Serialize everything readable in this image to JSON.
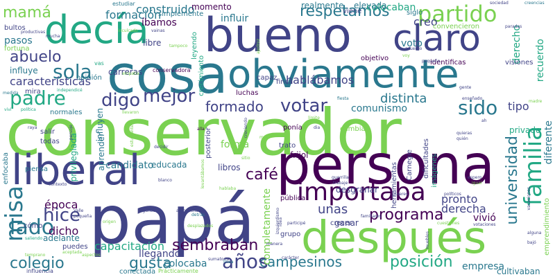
{
  "words": [
    {
      "text": "conservador",
      "color": "#7ad151"
    },
    {
      "text": "papá",
      "color": "#414487"
    },
    {
      "text": "persona",
      "color": "#440154"
    },
    {
      "text": "bueno",
      "color": "#414487"
    },
    {
      "text": "después",
      "color": "#7ad151"
    },
    {
      "text": "cosa",
      "color": "#2a788e"
    },
    {
      "text": "obviamente",
      "color": "#2a788e"
    },
    {
      "text": "liberal",
      "color": "#414487"
    },
    {
      "text": "decía",
      "color": "#22a884"
    },
    {
      "text": "claro",
      "color": "#414487"
    },
    {
      "text": "importaba",
      "color": "#440154"
    },
    {
      "text": "partido",
      "color": "#7ad151"
    },
    {
      "text": "sembraban",
      "color": "#440154"
    },
    {
      "text": "familia",
      "color": "#22a884"
    },
    {
      "text": "universidad",
      "color": "#2a788e"
    },
    {
      "text": "campesinos",
      "color": "#2a788e"
    },
    {
      "text": "posición",
      "color": "#22a884"
    },
    {
      "text": "colegio",
      "color": "#2a788e"
    },
    {
      "text": "lado",
      "color": "#2a788e"
    },
    {
      "text": "gusta",
      "color": "#2a788e"
    },
    {
      "text": "años",
      "color": "#414487"
    },
    {
      "text": "misa",
      "color": "#2a788e"
    },
    {
      "text": "hice",
      "color": "#414487"
    },
    {
      "text": "votar",
      "color": "#414487"
    },
    {
      "text": "mejor",
      "color": "#414487"
    },
    {
      "text": "padre",
      "color": "#22a884"
    },
    {
      "text": "sola",
      "color": "#2a788e"
    },
    {
      "text": "respetamos",
      "color": "#2a788e"
    },
    {
      "text": "programa",
      "color": "#440154"
    },
    {
      "text": "formado",
      "color": "#414487"
    },
    {
      "text": "digo",
      "color": "#414487"
    },
    {
      "text": "sido",
      "color": "#2a788e"
    },
    {
      "text": "café",
      "color": "#440154"
    },
    {
      "text": "abuelo",
      "color": "#414487"
    },
    {
      "text": "mamá",
      "color": "#7ad151"
    },
    {
      "text": "hablábamos",
      "color": "#414487"
    },
    {
      "text": "características",
      "color": "#414487"
    },
    {
      "text": "construido",
      "color": "#2a788e"
    },
    {
      "text": "formación",
      "color": "#2a788e"
    },
    {
      "text": "colocaban",
      "color": "#22a884"
    },
    {
      "text": "distinta",
      "color": "#2a788e"
    },
    {
      "text": "comunismo",
      "color": "#2a788e"
    },
    {
      "text": "capacitación",
      "color": "#22a884"
    },
    {
      "text": "época",
      "color": "#440154"
    },
    {
      "text": "dicho",
      "color": "#440154"
    },
    {
      "text": "candidato",
      "color": "#2a788e"
    },
    {
      "text": "pronto",
      "color": "#414487"
    },
    {
      "text": "derecha",
      "color": "#414487"
    },
    {
      "text": "unas",
      "color": "#414487"
    },
    {
      "text": "colocaba",
      "color": "#2a788e"
    },
    {
      "text": "llegando",
      "color": "#414487"
    },
    {
      "text": "empresa",
      "color": "#2a788e"
    },
    {
      "text": "cultivaban",
      "color": "#2a788e"
    },
    {
      "text": "tipo",
      "color": "#414487"
    },
    {
      "text": "vivió",
      "color": "#440154"
    },
    {
      "text": "forma",
      "color": "#7ad151"
    },
    {
      "text": "creo",
      "color": "#414487"
    },
    {
      "text": "voto",
      "color": "#2a788e"
    },
    {
      "text": "recuerdo",
      "color": "#22a884"
    },
    {
      "text": "derecho",
      "color": "#22a884"
    },
    {
      "text": "diferente",
      "color": "#2a788e"
    },
    {
      "text": "privado",
      "color": "#22a884"
    },
    {
      "text": "influye",
      "color": "#2a788e"
    },
    {
      "text": "influir",
      "color": "#2a788e"
    },
    {
      "text": "íbamos",
      "color": "#440154"
    },
    {
      "text": "momento",
      "color": "#440154"
    },
    {
      "text": "finca",
      "color": "#414487"
    },
    {
      "text": "realmente",
      "color": "#2a788e"
    },
    {
      "text": "elevada",
      "color": "#2a788e"
    },
    {
      "text": "pasos",
      "color": "#2a788e"
    },
    {
      "text": "bultos",
      "color": "#414487"
    },
    {
      "text": "fortuna",
      "color": "#7ad151"
    },
    {
      "text": "estudiar",
      "color": "#2a788e"
    },
    {
      "text": "simplemente",
      "color": "#2a788e"
    },
    {
      "text": "viene",
      "color": "#414487"
    },
    {
      "text": "siglo",
      "color": "#2a788e"
    },
    {
      "text": "convencieron",
      "color": "#7ad151"
    },
    {
      "text": "libre",
      "color": "#414487"
    },
    {
      "text": "carreras",
      "color": "#414487"
    },
    {
      "text": "conservadora",
      "color": "#440154"
    },
    {
      "text": "opinión",
      "color": "#2a788e"
    },
    {
      "text": "leyendo",
      "color": "#22a884"
    },
    {
      "text": "crecimiento",
      "color": "#22a884"
    },
    {
      "text": "capaz",
      "color": "#414487"
    },
    {
      "text": "objetivo",
      "color": "#440154"
    },
    {
      "text": "identificas",
      "color": "#440154"
    },
    {
      "text": "visiones",
      "color": "#414487"
    },
    {
      "text": "luchas",
      "color": "#440154"
    },
    {
      "text": "normales",
      "color": "#2a788e"
    },
    {
      "text": "mira",
      "color": "#414487"
    },
    {
      "text": "influyen",
      "color": "#2a788e"
    },
    {
      "text": "aprender",
      "color": "#2a788e"
    },
    {
      "text": "privilegiada",
      "color": "#22a884"
    },
    {
      "text": "salir",
      "color": "#414487"
    },
    {
      "text": "todas",
      "color": "#414487"
    },
    {
      "text": "educada",
      "color": "#2a788e"
    },
    {
      "text": "libros",
      "color": "#414487"
    },
    {
      "text": "ponía",
      "color": "#440154"
    },
    {
      "text": "cambiar",
      "color": "#7ad151"
    },
    {
      "text": "trato",
      "color": "#414487"
    },
    {
      "text": "frijol",
      "color": "#440154"
    },
    {
      "text": "Carnegie",
      "color": "#414487"
    },
    {
      "text": "dificultades",
      "color": "#414487"
    },
    {
      "text": "imágenes",
      "color": "#22a884"
    },
    {
      "text": "herramientas",
      "color": "#414487"
    },
    {
      "text": "completamente",
      "color": "#7ad151"
    },
    {
      "text": "desgranar",
      "color": "#414487"
    },
    {
      "text": "pública",
      "color": "#440154"
    },
    {
      "text": "ganar",
      "color": "#414487"
    },
    {
      "text": "crecer",
      "color": "#414487"
    },
    {
      "text": "grupo",
      "color": "#414487"
    },
    {
      "text": "adelante",
      "color": "#2a788e"
    },
    {
      "text": "puedes",
      "color": "#414487"
    },
    {
      "text": "piensa",
      "color": "#2a788e"
    },
    {
      "text": "enfocaba",
      "color": "#2a788e"
    },
    {
      "text": "cómo",
      "color": "#414487"
    },
    {
      "text": "emprendimiento",
      "color": "#7ad151"
    },
    {
      "text": "conectada",
      "color": "#2a788e"
    },
    {
      "text": "influencia",
      "color": "#414487"
    },
    {
      "text": "Prácticamente",
      "color": "#7ad151"
    },
    {
      "text": "posterior",
      "color": "#414487"
    },
    {
      "text": "manera",
      "color": "#414487"
    },
    {
      "text": "sociedad",
      "color": "#414487"
    },
    {
      "text": "creencias",
      "color": "#2a788e"
    },
    {
      "text": "vainas",
      "color": "#414487"
    },
    {
      "text": "inculcado",
      "color": "#7ad151"
    },
    {
      "text": "productivas",
      "color": "#414487"
    },
    {
      "text": "mucha",
      "color": "#414487"
    },
    {
      "text": "tampoco",
      "color": "#7ad151"
    },
    {
      "text": "ajedrez",
      "color": "#7ad151"
    },
    {
      "text": "acuerdo",
      "color": "#414487"
    },
    {
      "text": "voy",
      "color": "#7ad151"
    },
    {
      "text": "vas",
      "color": "#22a884"
    },
    {
      "text": "pequeño",
      "color": "#414487"
    },
    {
      "text": "empatía",
      "color": "#7ad151"
    },
    {
      "text": "independicé",
      "color": "#22a884"
    },
    {
      "text": "medida",
      "color": "#2a788e"
    },
    {
      "text": "política",
      "color": "#22a884"
    },
    {
      "text": "vivi",
      "color": "#22a884"
    },
    {
      "text": "llevaron",
      "color": "#7ad151"
    },
    {
      "text": "fiesta",
      "color": "#2a788e"
    },
    {
      "text": "ah",
      "color": "#414487"
    },
    {
      "text": "alla",
      "color": "#440154"
    },
    {
      "text": "persoje",
      "color": "#414487"
    },
    {
      "text": "estudiante",
      "color": "#7ad151"
    },
    {
      "text": "creciendo",
      "color": "#414487"
    },
    {
      "text": "raya",
      "color": "#414487"
    },
    {
      "text": "decidir",
      "color": "#414487"
    },
    {
      "text": "sitio",
      "color": "#7ad151"
    },
    {
      "text": "quieras",
      "color": "#414487"
    },
    {
      "text": "quién",
      "color": "#414487"
    },
    {
      "text": "blanco",
      "color": "#414487"
    },
    {
      "text": "contexto",
      "color": "#414487"
    },
    {
      "text": "hablaba",
      "color": "#7ad151"
    },
    {
      "text": "levantábamos",
      "color": "#7ad151"
    },
    {
      "text": "trabaje",
      "color": "#414487"
    },
    {
      "text": "guerrilla",
      "color": "#414487"
    },
    {
      "text": "espero",
      "color": "#414487"
    },
    {
      "text": "igual",
      "color": "#7ad151"
    },
    {
      "text": "Valle",
      "color": "#414487"
    },
    {
      "text": "pequeña",
      "color": "#414487"
    },
    {
      "text": "algunos",
      "color": "#414487"
    },
    {
      "text": "aprovecharse",
      "color": "#414487"
    },
    {
      "text": "origen",
      "color": "#7ad151"
    },
    {
      "text": "detrás",
      "color": "#2a788e"
    },
    {
      "text": "izquierdismo",
      "color": "#414487"
    },
    {
      "text": "participé",
      "color": "#414487"
    },
    {
      "text": "familiares",
      "color": "#414487"
    },
    {
      "text": "quieres",
      "color": "#414487"
    },
    {
      "text": "vacaciones",
      "color": "#414487"
    },
    {
      "text": "políticos",
      "color": "#414487"
    },
    {
      "text": "votaciones",
      "color": "#414487"
    },
    {
      "text": "cuestiones",
      "color": "#7ad151"
    },
    {
      "text": "alguna",
      "color": "#414487"
    },
    {
      "text": "bajó",
      "color": "#414487"
    },
    {
      "text": "desplazados",
      "color": "#7ad151"
    },
    {
      "text": "sumatoria",
      "color": "#414487"
    },
    {
      "text": "carácter",
      "color": "#414487"
    },
    {
      "text": "temprano",
      "color": "#7ad151"
    },
    {
      "text": "aspectos",
      "color": "#7ad151"
    },
    {
      "text": "saliendo",
      "color": "#22a884"
    },
    {
      "text": "aceptada",
      "color": "#7ad151"
    },
    {
      "text": "madre",
      "color": "#7ad151"
    },
    {
      "text": "gente",
      "color": "#414487"
    },
    {
      "text": "enseñado",
      "color": "#414487"
    },
    {
      "text": "dia",
      "color": "#414487"
    },
    {
      "text": "límite",
      "color": "#7ad151"
    },
    {
      "text": "idea",
      "color": "#414487"
    },
    {
      "text": "línea",
      "color": "#2a788e"
    },
    {
      "text": "paradas",
      "color": "#414487"
    },
    {
      "text": "meta",
      "color": "#7ad151"
    },
    {
      "text": "muebles",
      "color": "#414487"
    }
  ]
}
